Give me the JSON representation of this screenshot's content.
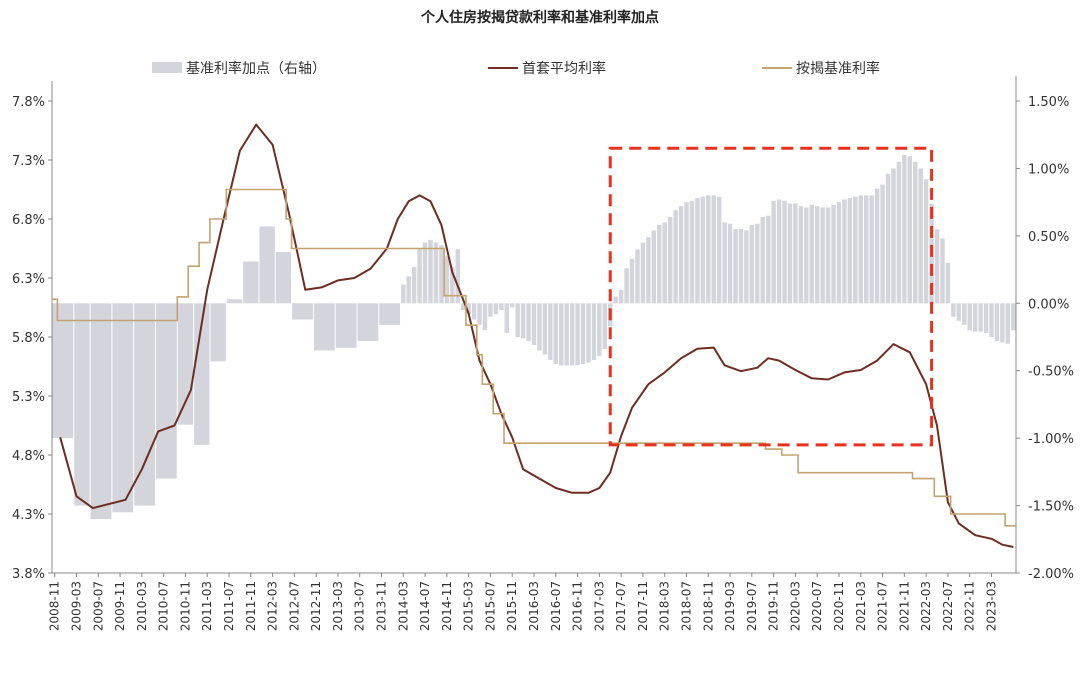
{
  "chart_data": {
    "type": "bar+line",
    "title": "个人住房按揭贷款利率和基准利率加点",
    "legend": [
      {
        "name": "基准利率加点（右轴）",
        "kind": "bar",
        "color": "#d3d4dc"
      },
      {
        "name": "首套平均利率",
        "kind": "line",
        "color": "#6e2d1f"
      },
      {
        "name": "按揭基准利率",
        "kind": "line",
        "color": "#c4a36f"
      }
    ],
    "legend_position": "top",
    "left_axis": {
      "ticks": [
        "3.8%",
        "4.3%",
        "4.8%",
        "5.3%",
        "5.8%",
        "6.3%",
        "6.8%",
        "7.3%",
        "7.8%"
      ],
      "range": [
        3.8,
        7.8
      ]
    },
    "right_axis": {
      "ticks": [
        "-2.00%",
        "-1.50%",
        "-1.00%",
        "-0.50%",
        "0.00%",
        "0.50%",
        "1.00%",
        "1.50%"
      ],
      "range": [
        -2.0,
        1.5
      ]
    },
    "x_ticks": [
      "2008-11",
      "2009-03",
      "2009-07",
      "2009-11",
      "2010-03",
      "2010-07",
      "2010-11",
      "2011-03",
      "2011-07",
      "2011-11",
      "2012-03",
      "2012-07",
      "2012-11",
      "2013-03",
      "2013-07",
      "2013-11",
      "2014-03",
      "2014-07",
      "2014-11",
      "2015-03",
      "2015-07",
      "2015-11",
      "2016-03",
      "2016-07",
      "2016-11",
      "2017-03",
      "2017-07",
      "2017-11",
      "2018-03",
      "2018-07",
      "2018-11",
      "2019-03",
      "2019-07",
      "2019-11",
      "2020-03",
      "2020-07",
      "2020-11",
      "2021-03",
      "2021-07",
      "2021-11",
      "2022-03",
      "2022-07",
      "2022-11",
      "2023-03"
    ],
    "x_start": "2008-11",
    "x_end": "2023-07",
    "spread_bars": [
      {
        "from": "2008-11",
        "to": "2009-02",
        "value": -1.0
      },
      {
        "from": "2009-03",
        "to": "2009-05",
        "value": -1.5
      },
      {
        "from": "2009-06",
        "to": "2009-09",
        "value": -1.6
      },
      {
        "from": "2009-10",
        "to": "2010-01",
        "value": -1.55
      },
      {
        "from": "2010-02",
        "to": "2010-05",
        "value": -1.5
      },
      {
        "from": "2010-06",
        "to": "2010-09",
        "value": -1.3
      },
      {
        "from": "2010-10",
        "to": "2010-12",
        "value": -0.9
      },
      {
        "from": "2011-01",
        "to": "2011-03",
        "value": -1.05
      },
      {
        "from": "2011-04",
        "to": "2011-06",
        "value": -0.43
      },
      {
        "from": "2011-07",
        "to": "2011-09",
        "value": 0.03
      },
      {
        "from": "2011-10",
        "to": "2011-12",
        "value": 0.31
      },
      {
        "from": "2012-01",
        "to": "2012-03",
        "value": 0.57
      },
      {
        "from": "2012-04",
        "to": "2012-06",
        "value": 0.38
      },
      {
        "from": "2012-07",
        "to": "2012-10",
        "value": -0.12
      },
      {
        "from": "2012-11",
        "to": "2013-02",
        "value": -0.35
      },
      {
        "from": "2013-03",
        "to": "2013-06",
        "value": -0.33
      },
      {
        "from": "2013-07",
        "to": "2013-10",
        "value": -0.28
      },
      {
        "from": "2013-11",
        "to": "2014-02",
        "value": -0.16
      },
      {
        "from": "2014-03",
        "to": "2014-03",
        "value": 0.14
      },
      {
        "from": "2014-04",
        "to": "2014-04",
        "value": 0.2
      },
      {
        "from": "2014-05",
        "to": "2014-05",
        "value": 0.27
      },
      {
        "from": "2014-06",
        "to": "2014-06",
        "value": 0.41
      },
      {
        "from": "2014-07",
        "to": "2014-07",
        "value": 0.45
      },
      {
        "from": "2014-08",
        "to": "2014-08",
        "value": 0.47
      },
      {
        "from": "2014-09",
        "to": "2014-09",
        "value": 0.45
      },
      {
        "from": "2014-10",
        "to": "2014-10",
        "value": 0.43
      },
      {
        "from": "2014-11",
        "to": "2014-11",
        "value": 0.35
      },
      {
        "from": "2014-12",
        "to": "2014-12",
        "value": 0.27
      },
      {
        "from": "2015-01",
        "to": "2015-01",
        "value": 0.4
      },
      {
        "from": "2015-02",
        "to": "2015-02",
        "value": -0.05
      },
      {
        "from": "2015-03",
        "to": "2015-03",
        "value": -0.08
      },
      {
        "from": "2015-04",
        "to": "2015-04",
        "value": -0.12
      },
      {
        "from": "2015-05",
        "to": "2015-05",
        "value": -0.16
      },
      {
        "from": "2015-06",
        "to": "2015-06",
        "value": -0.2
      },
      {
        "from": "2015-07",
        "to": "2015-07",
        "value": -0.1
      },
      {
        "from": "2015-08",
        "to": "2015-08",
        "value": -0.08
      },
      {
        "from": "2015-09",
        "to": "2015-09",
        "value": -0.05
      },
      {
        "from": "2015-10",
        "to": "2015-10",
        "value": -0.22
      },
      {
        "from": "2015-11",
        "to": "2015-11",
        "value": -0.03
      },
      {
        "from": "2015-12",
        "to": "2015-12",
        "value": -0.25
      },
      {
        "from": "2016-01",
        "to": "2016-01",
        "value": -0.26
      },
      {
        "from": "2016-02",
        "to": "2016-02",
        "value": -0.28
      },
      {
        "from": "2016-03",
        "to": "2016-03",
        "value": -0.31
      },
      {
        "from": "2016-04",
        "to": "2016-04",
        "value": -0.35
      },
      {
        "from": "2016-05",
        "to": "2016-05",
        "value": -0.38
      },
      {
        "from": "2016-06",
        "to": "2016-06",
        "value": -0.42
      },
      {
        "from": "2016-07",
        "to": "2016-07",
        "value": -0.45
      },
      {
        "from": "2016-08",
        "to": "2016-08",
        "value": -0.46
      },
      {
        "from": "2016-09",
        "to": "2016-09",
        "value": -0.46
      },
      {
        "from": "2016-10",
        "to": "2016-10",
        "value": -0.46
      },
      {
        "from": "2016-11",
        "to": "2016-11",
        "value": -0.46
      },
      {
        "from": "2016-12",
        "to": "2016-12",
        "value": -0.45
      },
      {
        "from": "2017-01",
        "to": "2017-01",
        "value": -0.44
      },
      {
        "from": "2017-02",
        "to": "2017-02",
        "value": -0.42
      },
      {
        "from": "2017-03",
        "to": "2017-03",
        "value": -0.39
      },
      {
        "from": "2017-04",
        "to": "2017-04",
        "value": -0.34
      },
      {
        "from": "2017-05",
        "to": "2017-05",
        "value": -0.17
      },
      {
        "from": "2017-06",
        "to": "2017-06",
        "value": 0.05
      },
      {
        "from": "2017-07",
        "to": "2017-07",
        "value": 0.1
      },
      {
        "from": "2017-08",
        "to": "2017-08",
        "value": 0.26
      },
      {
        "from": "2017-09",
        "to": "2017-09",
        "value": 0.33
      },
      {
        "from": "2017-10",
        "to": "2017-10",
        "value": 0.4
      },
      {
        "from": "2017-11",
        "to": "2017-11",
        "value": 0.45
      },
      {
        "from": "2017-12",
        "to": "2017-12",
        "value": 0.49
      },
      {
        "from": "2018-01",
        "to": "2018-01",
        "value": 0.54
      },
      {
        "from": "2018-02",
        "to": "2018-02",
        "value": 0.58
      },
      {
        "from": "2018-03",
        "to": "2018-03",
        "value": 0.6
      },
      {
        "from": "2018-04",
        "to": "2018-04",
        "value": 0.64
      },
      {
        "from": "2018-05",
        "to": "2018-05",
        "value": 0.69
      },
      {
        "from": "2018-06",
        "to": "2018-06",
        "value": 0.72
      },
      {
        "from": "2018-07",
        "to": "2018-07",
        "value": 0.75
      },
      {
        "from": "2018-08",
        "to": "2018-08",
        "value": 0.76
      },
      {
        "from": "2018-09",
        "to": "2018-09",
        "value": 0.78
      },
      {
        "from": "2018-10",
        "to": "2018-10",
        "value": 0.79
      },
      {
        "from": "2018-11",
        "to": "2018-11",
        "value": 0.8
      },
      {
        "from": "2018-12",
        "to": "2018-12",
        "value": 0.8
      },
      {
        "from": "2019-01",
        "to": "2019-01",
        "value": 0.79
      },
      {
        "from": "2019-02",
        "to": "2019-02",
        "value": 0.6
      },
      {
        "from": "2019-03",
        "to": "2019-03",
        "value": 0.59
      },
      {
        "from": "2019-04",
        "to": "2019-04",
        "value": 0.55
      },
      {
        "from": "2019-05",
        "to": "2019-05",
        "value": 0.55
      },
      {
        "from": "2019-06",
        "to": "2019-06",
        "value": 0.54
      },
      {
        "from": "2019-07",
        "to": "2019-07",
        "value": 0.58
      },
      {
        "from": "2019-08",
        "to": "2019-08",
        "value": 0.59
      },
      {
        "from": "2019-09",
        "to": "2019-09",
        "value": 0.64
      },
      {
        "from": "2019-10",
        "to": "2019-10",
        "value": 0.65
      },
      {
        "from": "2019-11",
        "to": "2019-11",
        "value": 0.76
      },
      {
        "from": "2019-12",
        "to": "2019-12",
        "value": 0.77
      },
      {
        "from": "2020-01",
        "to": "2020-01",
        "value": 0.76
      },
      {
        "from": "2020-02",
        "to": "2020-02",
        "value": 0.74
      },
      {
        "from": "2020-03",
        "to": "2020-03",
        "value": 0.74
      },
      {
        "from": "2020-04",
        "to": "2020-04",
        "value": 0.72
      },
      {
        "from": "2020-05",
        "to": "2020-05",
        "value": 0.71
      },
      {
        "from": "2020-06",
        "to": "2020-06",
        "value": 0.73
      },
      {
        "from": "2020-07",
        "to": "2020-07",
        "value": 0.72
      },
      {
        "from": "2020-08",
        "to": "2020-08",
        "value": 0.71
      },
      {
        "from": "2020-09",
        "to": "2020-09",
        "value": 0.71
      },
      {
        "from": "2020-10",
        "to": "2020-10",
        "value": 0.73
      },
      {
        "from": "2020-11",
        "to": "2020-11",
        "value": 0.75
      },
      {
        "from": "2020-12",
        "to": "2020-12",
        "value": 0.77
      },
      {
        "from": "2021-01",
        "to": "2021-01",
        "value": 0.78
      },
      {
        "from": "2021-02",
        "to": "2021-02",
        "value": 0.79
      },
      {
        "from": "2021-03",
        "to": "2021-03",
        "value": 0.8
      },
      {
        "from": "2021-04",
        "to": "2021-04",
        "value": 0.8
      },
      {
        "from": "2021-05",
        "to": "2021-05",
        "value": 0.8
      },
      {
        "from": "2021-06",
        "to": "2021-06",
        "value": 0.85
      },
      {
        "from": "2021-07",
        "to": "2021-07",
        "value": 0.88
      },
      {
        "from": "2021-08",
        "to": "2021-08",
        "value": 0.96
      },
      {
        "from": "2021-09",
        "to": "2021-09",
        "value": 1.0
      },
      {
        "from": "2021-10",
        "to": "2021-10",
        "value": 1.05
      },
      {
        "from": "2021-11",
        "to": "2021-11",
        "value": 1.1
      },
      {
        "from": "2021-12",
        "to": "2021-12",
        "value": 1.09
      },
      {
        "from": "2022-01",
        "to": "2022-01",
        "value": 1.05
      },
      {
        "from": "2022-02",
        "to": "2022-02",
        "value": 1.0
      },
      {
        "from": "2022-03",
        "to": "2022-03",
        "value": 0.92
      },
      {
        "from": "2022-04",
        "to": "2022-04",
        "value": 0.74
      },
      {
        "from": "2022-05",
        "to": "2022-05",
        "value": 0.55
      },
      {
        "from": "2022-06",
        "to": "2022-06",
        "value": 0.48
      },
      {
        "from": "2022-07",
        "to": "2022-07",
        "value": 0.3
      },
      {
        "from": "2022-08",
        "to": "2022-08",
        "value": -0.1
      },
      {
        "from": "2022-09",
        "to": "2022-09",
        "value": -0.13
      },
      {
        "from": "2022-10",
        "to": "2022-10",
        "value": -0.16
      },
      {
        "from": "2022-11",
        "to": "2022-11",
        "value": -0.2
      },
      {
        "from": "2022-12",
        "to": "2022-12",
        "value": -0.21
      },
      {
        "from": "2023-01",
        "to": "2023-01",
        "value": -0.21
      },
      {
        "from": "2023-02",
        "to": "2023-02",
        "value": -0.22
      },
      {
        "from": "2023-03",
        "to": "2023-03",
        "value": -0.25
      },
      {
        "from": "2023-04",
        "to": "2023-04",
        "value": -0.28
      },
      {
        "from": "2023-05",
        "to": "2023-05",
        "value": -0.29
      },
      {
        "from": "2023-06",
        "to": "2023-06",
        "value": -0.3
      },
      {
        "from": "2023-07",
        "to": "2023-07",
        "value": -0.2
      }
    ],
    "series": [
      {
        "name": "首套平均利率",
        "points": [
          [
            "2008-12",
            4.95
          ],
          [
            "2009-03",
            4.45
          ],
          [
            "2009-06",
            4.35
          ],
          [
            "2009-12",
            4.42
          ],
          [
            "2010-03",
            4.68
          ],
          [
            "2010-06",
            5.0
          ],
          [
            "2010-09",
            5.05
          ],
          [
            "2010-12",
            5.35
          ],
          [
            "2011-03",
            6.2
          ],
          [
            "2011-06",
            6.8
          ],
          [
            "2011-09",
            7.38
          ],
          [
            "2011-12",
            7.6
          ],
          [
            "2012-03",
            7.43
          ],
          [
            "2012-06",
            6.85
          ],
          [
            "2012-09",
            6.2
          ],
          [
            "2012-12",
            6.22
          ],
          [
            "2013-03",
            6.28
          ],
          [
            "2013-06",
            6.3
          ],
          [
            "2013-09",
            6.38
          ],
          [
            "2013-12",
            6.55
          ],
          [
            "2014-02",
            6.8
          ],
          [
            "2014-04",
            6.95
          ],
          [
            "2014-06",
            7.0
          ],
          [
            "2014-08",
            6.95
          ],
          [
            "2014-10",
            6.75
          ],
          [
            "2014-12",
            6.35
          ],
          [
            "2015-03",
            6.0
          ],
          [
            "2015-05",
            5.6
          ],
          [
            "2015-07",
            5.4
          ],
          [
            "2015-09",
            5.15
          ],
          [
            "2015-11",
            4.95
          ],
          [
            "2016-01",
            4.68
          ],
          [
            "2016-04",
            4.6
          ],
          [
            "2016-07",
            4.52
          ],
          [
            "2016-10",
            4.48
          ],
          [
            "2017-01",
            4.48
          ],
          [
            "2017-03",
            4.52
          ],
          [
            "2017-05",
            4.65
          ],
          [
            "2017-07",
            4.96
          ],
          [
            "2017-09",
            5.2
          ],
          [
            "2017-12",
            5.4
          ],
          [
            "2018-03",
            5.5
          ],
          [
            "2018-06",
            5.62
          ],
          [
            "2018-09",
            5.7
          ],
          [
            "2018-12",
            5.71
          ],
          [
            "2019-02",
            5.56
          ],
          [
            "2019-05",
            5.51
          ],
          [
            "2019-08",
            5.54
          ],
          [
            "2019-10",
            5.62
          ],
          [
            "2019-12",
            5.6
          ],
          [
            "2020-03",
            5.52
          ],
          [
            "2020-06",
            5.45
          ],
          [
            "2020-09",
            5.44
          ],
          [
            "2020-12",
            5.5
          ],
          [
            "2021-03",
            5.52
          ],
          [
            "2021-06",
            5.6
          ],
          [
            "2021-09",
            5.74
          ],
          [
            "2021-12",
            5.67
          ],
          [
            "2022-03",
            5.4
          ],
          [
            "2022-05",
            5.05
          ],
          [
            "2022-07",
            4.4
          ],
          [
            "2022-09",
            4.22
          ],
          [
            "2022-12",
            4.12
          ],
          [
            "2023-03",
            4.09
          ],
          [
            "2023-05",
            4.04
          ],
          [
            "2023-07",
            4.02
          ]
        ]
      },
      {
        "name": "按揭基准利率",
        "steps": [
          [
            "2008-11",
            6.12
          ],
          [
            "2008-12",
            5.94
          ],
          [
            "2010-10",
            6.14
          ],
          [
            "2010-12",
            6.4
          ],
          [
            "2011-02",
            6.6
          ],
          [
            "2011-04",
            6.8
          ],
          [
            "2011-07",
            7.05
          ],
          [
            "2012-06",
            6.8
          ],
          [
            "2012-07",
            6.55
          ],
          [
            "2014-11",
            6.15
          ],
          [
            "2015-03",
            5.9
          ],
          [
            "2015-05",
            5.65
          ],
          [
            "2015-06",
            5.4
          ],
          [
            "2015-08",
            5.15
          ],
          [
            "2015-10",
            4.9
          ],
          [
            "2019-10",
            4.85
          ],
          [
            "2020-01",
            4.8
          ],
          [
            "2020-04",
            4.65
          ],
          [
            "2022-01",
            4.6
          ],
          [
            "2022-05",
            4.45
          ],
          [
            "2022-08",
            4.3
          ],
          [
            "2023-06",
            4.2
          ]
        ]
      }
    ],
    "highlight_box": {
      "from": "2017-05",
      "to": "2022-04",
      "right_axis_top": 1.15,
      "right_axis_bottom": -1.05,
      "color": "#e8321e"
    }
  }
}
